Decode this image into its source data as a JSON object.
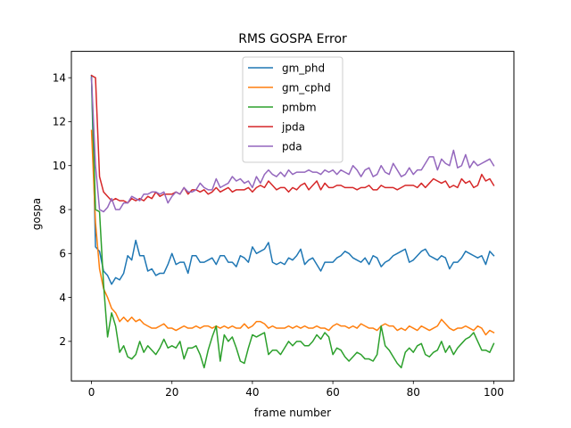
{
  "chart_data": {
    "type": "line",
    "title": "RMS GOSPA Error",
    "xlabel": "frame number",
    "ylabel": "gospa",
    "xlim": [
      -5,
      105
    ],
    "ylim": [
      0.2,
      15.2
    ],
    "xticks": [
      0,
      20,
      40,
      60,
      80,
      100
    ],
    "yticks": [
      2,
      4,
      6,
      8,
      10,
      12,
      14
    ],
    "grid": false,
    "legend_position": "upper center",
    "series": [
      {
        "name": "gm_phd",
        "color": "#1f77b4",
        "values": [
          14.1,
          6.3,
          6.1,
          5.2,
          5.0,
          4.6,
          4.9,
          4.8,
          5.1,
          5.9,
          5.7,
          6.6,
          5.9,
          5.9,
          5.2,
          5.3,
          5.0,
          5.1,
          5.1,
          5.5,
          6.0,
          5.5,
          5.6,
          5.6,
          5.1,
          5.9,
          5.9,
          5.6,
          5.6,
          5.7,
          5.8,
          5.5,
          5.9,
          5.9,
          5.6,
          5.6,
          5.4,
          5.9,
          5.8,
          5.6,
          6.3,
          6.0,
          6.1,
          6.2,
          6.5,
          5.6,
          5.5,
          5.6,
          5.5,
          5.8,
          5.7,
          5.9,
          6.2,
          5.5,
          5.7,
          5.8,
          5.5,
          5.2,
          5.6,
          5.6,
          5.6,
          5.8,
          5.9,
          6.1,
          6.0,
          5.8,
          5.7,
          5.6,
          5.8,
          5.5,
          5.9,
          5.8,
          5.4,
          5.6,
          5.7,
          5.9,
          6.0,
          6.1,
          6.2,
          5.6,
          5.7,
          5.9,
          6.1,
          6.2,
          5.9,
          5.8,
          5.7,
          5.9,
          5.8,
          5.3,
          5.6,
          5.6,
          5.8,
          6.1,
          6.0,
          5.9,
          5.8,
          5.9,
          5.5,
          6.1,
          5.9
        ]
      },
      {
        "name": "gm_cphd",
        "color": "#ff7f0e",
        "values": [
          11.6,
          7.4,
          5.3,
          4.4,
          4.0,
          3.5,
          3.3,
          2.9,
          3.1,
          2.9,
          3.1,
          2.9,
          3.0,
          2.8,
          2.7,
          2.6,
          2.6,
          2.7,
          2.8,
          2.6,
          2.6,
          2.5,
          2.6,
          2.7,
          2.6,
          2.6,
          2.7,
          2.6,
          2.7,
          2.7,
          2.6,
          2.7,
          2.6,
          2.7,
          2.6,
          2.7,
          2.6,
          2.6,
          2.8,
          2.6,
          2.7,
          2.9,
          2.9,
          2.8,
          2.6,
          2.7,
          2.6,
          2.6,
          2.6,
          2.7,
          2.6,
          2.7,
          2.6,
          2.7,
          2.6,
          2.6,
          2.7,
          2.6,
          2.6,
          2.5,
          2.7,
          2.8,
          2.7,
          2.7,
          2.6,
          2.7,
          2.6,
          2.8,
          2.7,
          2.6,
          2.6,
          2.5,
          2.7,
          2.8,
          2.7,
          2.7,
          2.5,
          2.6,
          2.5,
          2.7,
          2.6,
          2.5,
          2.7,
          2.6,
          2.5,
          2.6,
          2.7,
          3.0,
          2.8,
          2.6,
          2.5,
          2.6,
          2.6,
          2.7,
          2.6,
          2.5,
          2.7,
          2.6,
          2.3,
          2.5,
          2.4
        ]
      },
      {
        "name": "pmbm",
        "color": "#2ca02c",
        "values": [
          14.0,
          8.0,
          7.9,
          4.6,
          2.2,
          3.3,
          2.7,
          1.5,
          1.8,
          1.3,
          1.2,
          1.4,
          2.0,
          1.5,
          1.8,
          1.6,
          1.4,
          1.7,
          2.1,
          1.7,
          1.8,
          1.7,
          2.0,
          1.2,
          1.7,
          1.7,
          1.8,
          1.4,
          0.8,
          1.6,
          2.2,
          2.7,
          1.1,
          2.3,
          2.0,
          2.2,
          1.7,
          1.1,
          1.0,
          1.7,
          2.3,
          2.2,
          2.3,
          2.4,
          1.4,
          1.6,
          1.6,
          1.4,
          1.7,
          2.0,
          1.8,
          2.0,
          2.0,
          1.8,
          1.8,
          2.0,
          2.3,
          2.1,
          2.4,
          2.2,
          1.4,
          1.7,
          1.6,
          1.3,
          1.1,
          1.3,
          1.5,
          1.4,
          1.2,
          1.2,
          1.1,
          1.4,
          2.7,
          1.8,
          1.6,
          1.3,
          1.0,
          0.8,
          1.5,
          1.7,
          1.5,
          1.8,
          1.9,
          1.4,
          1.3,
          1.5,
          1.6,
          2.0,
          1.5,
          1.8,
          1.4,
          1.7,
          1.9,
          2.1,
          2.2,
          2.4,
          2.0,
          1.6,
          1.6,
          1.5,
          1.9
        ]
      },
      {
        "name": "jpda",
        "color": "#d62728",
        "values": [
          14.1,
          14.0,
          9.5,
          8.8,
          8.6,
          8.4,
          8.5,
          8.4,
          8.4,
          8.3,
          8.5,
          8.4,
          8.5,
          8.4,
          8.6,
          8.5,
          8.8,
          8.6,
          8.7,
          8.7,
          8.7,
          8.8,
          8.7,
          9.0,
          8.7,
          8.9,
          8.9,
          8.8,
          8.9,
          8.7,
          8.8,
          9.0,
          8.8,
          8.9,
          9.0,
          8.8,
          8.9,
          8.9,
          8.9,
          9.0,
          8.8,
          9.0,
          9.1,
          9.0,
          9.3,
          9.1,
          8.9,
          9.0,
          9.0,
          8.8,
          9.0,
          8.9,
          9.1,
          9.2,
          8.9,
          9.1,
          9.3,
          8.9,
          9.2,
          9.0,
          9.0,
          9.1,
          9.1,
          9.0,
          9.0,
          9.0,
          8.9,
          9.0,
          9.0,
          9.1,
          8.9,
          8.9,
          9.1,
          9.0,
          9.0,
          9.0,
          8.9,
          9.0,
          9.1,
          9.1,
          9.1,
          9.0,
          9.2,
          9.0,
          9.2,
          9.4,
          9.3,
          9.2,
          9.3,
          9.0,
          9.1,
          9.0,
          9.4,
          9.2,
          9.3,
          9.0,
          9.1,
          9.6,
          9.3,
          9.4,
          9.1
        ]
      },
      {
        "name": "pda",
        "color": "#9467bd",
        "values": [
          14.0,
          10.0,
          8.0,
          7.9,
          8.1,
          8.5,
          8.0,
          8.0,
          8.3,
          8.3,
          8.6,
          8.5,
          8.4,
          8.7,
          8.7,
          8.8,
          8.8,
          8.7,
          8.8,
          8.3,
          8.6,
          8.8,
          8.7,
          9.0,
          8.8,
          8.8,
          8.9,
          9.2,
          9.0,
          8.9,
          8.9,
          9.4,
          9.0,
          9.1,
          9.2,
          9.5,
          9.3,
          9.4,
          9.2,
          9.3,
          9.0,
          9.5,
          9.2,
          9.6,
          9.8,
          9.6,
          9.5,
          9.7,
          9.5,
          9.8,
          9.6,
          9.7,
          9.7,
          9.7,
          9.8,
          9.7,
          9.7,
          9.6,
          9.8,
          9.7,
          9.8,
          9.6,
          9.8,
          9.7,
          9.6,
          10.0,
          9.8,
          9.5,
          9.8,
          9.9,
          9.5,
          9.6,
          10.0,
          9.7,
          9.6,
          10.1,
          9.8,
          9.5,
          9.6,
          9.9,
          9.6,
          9.8,
          9.8,
          10.1,
          10.4,
          10.4,
          9.8,
          10.3,
          10.1,
          10.0,
          10.7,
          9.9,
          10.0,
          10.5,
          9.9,
          10.2,
          10.0,
          10.1,
          10.2,
          10.3,
          10.0
        ]
      }
    ]
  }
}
